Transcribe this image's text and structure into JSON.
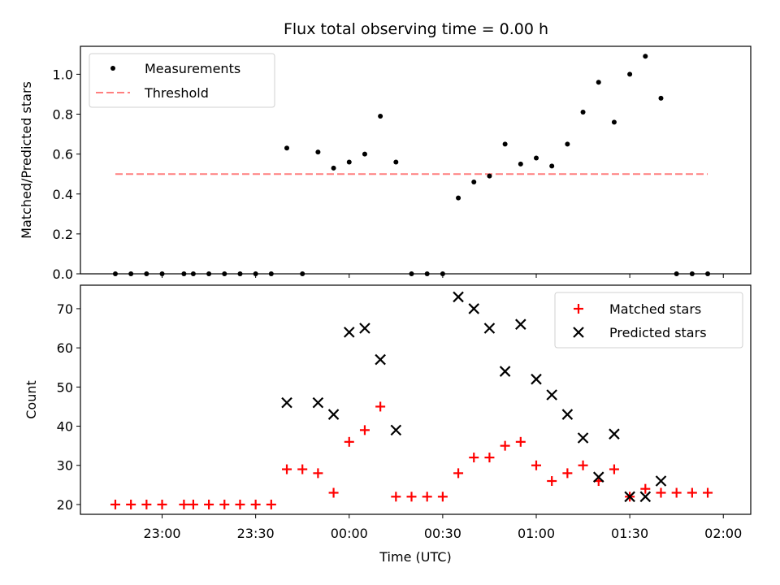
{
  "colors": {
    "measurements": "#000000",
    "threshold": "#ff7f7f",
    "matched": "#ff0000",
    "predicted": "#000000"
  },
  "chart_data": [
    {
      "type": "scatter",
      "title": "Flux total observing time = 0.00 h",
      "xlabel": "",
      "ylabel": "Matched/Predicted stars",
      "ylim": [
        0.0,
        1.14
      ],
      "yticks": [
        "0.0",
        "0.2",
        "0.4",
        "0.6",
        "0.8",
        "1.0"
      ],
      "legend_position": "top-left",
      "series": [
        {
          "name": "Measurements",
          "marker": "dot",
          "points": [
            [
              "22:45",
              0.0
            ],
            [
              "22:50",
              0.0
            ],
            [
              "22:55",
              0.0
            ],
            [
              "23:00",
              0.0
            ],
            [
              "23:07",
              0.0
            ],
            [
              "23:10",
              0.0
            ],
            [
              "23:15",
              0.0
            ],
            [
              "23:20",
              0.0
            ],
            [
              "23:25",
              0.0
            ],
            [
              "23:30",
              0.0
            ],
            [
              "23:35",
              0.0
            ],
            [
              "23:40",
              0.63
            ],
            [
              "23:45",
              0.0
            ],
            [
              "23:50",
              0.61
            ],
            [
              "23:55",
              0.53
            ],
            [
              "00:00",
              0.56
            ],
            [
              "00:05",
              0.6
            ],
            [
              "00:10",
              0.79
            ],
            [
              "00:15",
              0.56
            ],
            [
              "00:20",
              0.0
            ],
            [
              "00:25",
              0.0
            ],
            [
              "00:30",
              0.0
            ],
            [
              "00:35",
              0.38
            ],
            [
              "00:40",
              0.46
            ],
            [
              "00:45",
              0.49
            ],
            [
              "00:50",
              0.65
            ],
            [
              "00:55",
              0.55
            ],
            [
              "01:00",
              0.58
            ],
            [
              "01:05",
              0.54
            ],
            [
              "01:10",
              0.65
            ],
            [
              "01:15",
              0.81
            ],
            [
              "01:20",
              0.96
            ],
            [
              "01:25",
              0.76
            ],
            [
              "01:30",
              1.0
            ],
            [
              "01:35",
              1.09
            ],
            [
              "01:40",
              0.88
            ],
            [
              "01:45",
              0.0
            ],
            [
              "01:50",
              0.0
            ],
            [
              "01:55",
              0.0
            ]
          ]
        },
        {
          "name": "Threshold",
          "style": "dashed-line",
          "points": [
            [
              "22:45",
              0.5
            ],
            [
              "01:55",
              0.5
            ]
          ]
        }
      ]
    },
    {
      "type": "scatter",
      "xlabel": "Time (UTC)",
      "ylabel": "Count",
      "ylim": [
        17.5,
        76
      ],
      "yticks": [
        "20",
        "30",
        "40",
        "50",
        "60",
        "70"
      ],
      "xticks": [
        "23:00",
        "23:30",
        "00:00",
        "00:30",
        "01:00",
        "01:30",
        "02:00"
      ],
      "legend_position": "top-right",
      "series": [
        {
          "name": "Matched stars",
          "marker": "plus",
          "points": [
            [
              "22:45",
              20
            ],
            [
              "22:50",
              20
            ],
            [
              "22:55",
              20
            ],
            [
              "23:00",
              20
            ],
            [
              "23:07",
              20
            ],
            [
              "23:10",
              20
            ],
            [
              "23:15",
              20
            ],
            [
              "23:20",
              20
            ],
            [
              "23:25",
              20
            ],
            [
              "23:30",
              20
            ],
            [
              "23:35",
              20
            ],
            [
              "23:40",
              29
            ],
            [
              "23:45",
              29
            ],
            [
              "23:50",
              28
            ],
            [
              "23:55",
              23
            ],
            [
              "00:00",
              36
            ],
            [
              "00:05",
              39
            ],
            [
              "00:10",
              45
            ],
            [
              "00:15",
              22
            ],
            [
              "00:20",
              22
            ],
            [
              "00:25",
              22
            ],
            [
              "00:30",
              22
            ],
            [
              "00:35",
              28
            ],
            [
              "00:40",
              32
            ],
            [
              "00:45",
              32
            ],
            [
              "00:50",
              35
            ],
            [
              "00:55",
              36
            ],
            [
              "01:00",
              30
            ],
            [
              "01:05",
              26
            ],
            [
              "01:10",
              28
            ],
            [
              "01:15",
              30
            ],
            [
              "01:20",
              26
            ],
            [
              "01:25",
              29
            ],
            [
              "01:30",
              22
            ],
            [
              "01:35",
              24
            ],
            [
              "01:40",
              23
            ],
            [
              "01:45",
              23
            ],
            [
              "01:50",
              23
            ],
            [
              "01:55",
              23
            ]
          ]
        },
        {
          "name": "Predicted stars",
          "marker": "x",
          "points": [
            [
              "23:40",
              46
            ],
            [
              "23:50",
              46
            ],
            [
              "23:55",
              43
            ],
            [
              "00:00",
              64
            ],
            [
              "00:05",
              65
            ],
            [
              "00:10",
              57
            ],
            [
              "00:15",
              39
            ],
            [
              "00:35",
              73
            ],
            [
              "00:40",
              70
            ],
            [
              "00:45",
              65
            ],
            [
              "00:50",
              54
            ],
            [
              "00:55",
              66
            ],
            [
              "01:00",
              52
            ],
            [
              "01:05",
              48
            ],
            [
              "01:10",
              43
            ],
            [
              "01:15",
              37
            ],
            [
              "01:20",
              27
            ],
            [
              "01:25",
              38
            ],
            [
              "01:30",
              22
            ],
            [
              "01:35",
              22
            ],
            [
              "01:40",
              26
            ]
          ]
        }
      ]
    }
  ]
}
